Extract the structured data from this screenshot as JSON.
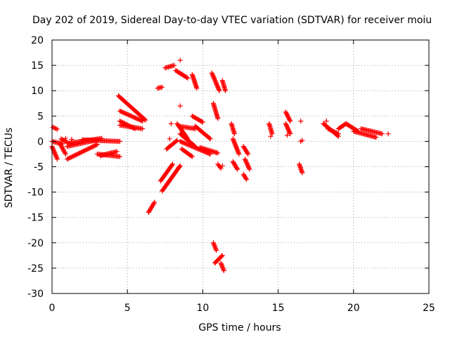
{
  "chart_data": {
    "type": "scatter",
    "title": "Day 202 of 2019, Sidereal Day-to-day VTEC variation (SDTVAR) for receiver moiu",
    "xlabel": "GPS time / hours",
    "ylabel": "SDTVAR / TECUs",
    "xlim": [
      0,
      25
    ],
    "ylim": [
      -30,
      20
    ],
    "x_ticks": [
      0,
      5,
      10,
      15,
      20,
      25
    ],
    "y_ticks": [
      -30,
      -25,
      -20,
      -15,
      -10,
      -5,
      0,
      5,
      10,
      15,
      20
    ],
    "x_tick_labels": [
      "0",
      "5",
      "10",
      "15",
      "20",
      "25"
    ],
    "y_tick_labels": [
      "-30",
      "-25",
      "-20",
      "-15",
      "-10",
      "-5",
      "0",
      "5",
      "10",
      "15",
      "20"
    ],
    "grid": true,
    "marker": "+",
    "color": "#ff0000",
    "segments": [
      {
        "x": [
          0.05,
          0.35
        ],
        "y": [
          2.8,
          2.4
        ]
      },
      {
        "x": [
          0.0,
          0.35
        ],
        "y": [
          -1.0,
          -3.5
        ]
      },
      {
        "x": [
          0.0,
          0.7
        ],
        "y": [
          0.0,
          -0.5
        ]
      },
      {
        "x": [
          0.5,
          0.9
        ],
        "y": [
          -0.3,
          -2.5
        ]
      },
      {
        "x": [
          0.6,
          1.2
        ],
        "y": [
          0.5,
          -0.5
        ]
      },
      {
        "x": [
          1.0,
          3.0
        ],
        "y": [
          -3.5,
          -0.6
        ]
      },
      {
        "x": [
          1.0,
          3.0
        ],
        "y": [
          -1.0,
          0.3
        ]
      },
      {
        "x": [
          1.2,
          3.3
        ],
        "y": [
          -0.3,
          0.6
        ]
      },
      {
        "x": [
          2.0,
          4.5
        ],
        "y": [
          0.3,
          0.0
        ]
      },
      {
        "x": [
          3.0,
          4.5
        ],
        "y": [
          -2.5,
          -3.0
        ]
      },
      {
        "x": [
          3.2,
          4.3
        ],
        "y": [
          -2.8,
          -2.0
        ]
      },
      {
        "x": [
          4.4,
          6.2
        ],
        "y": [
          9.0,
          4.2
        ]
      },
      {
        "x": [
          4.5,
          6.0
        ],
        "y": [
          6.0,
          4.0
        ]
      },
      {
        "x": [
          4.5,
          5.5
        ],
        "y": [
          4.0,
          2.5
        ]
      },
      {
        "x": [
          4.5,
          6.0
        ],
        "y": [
          3.2,
          2.5
        ]
      },
      {
        "x": [
          6.4,
          6.8
        ],
        "y": [
          -14.0,
          -12.0
        ]
      },
      {
        "x": [
          7.0,
          7.3
        ],
        "y": [
          10.5,
          10.7
        ]
      },
      {
        "x": [
          7.2,
          8.0
        ],
        "y": [
          -7.8,
          -4.5
        ]
      },
      {
        "x": [
          7.3,
          8.5
        ],
        "y": [
          -9.8,
          -4.8
        ]
      },
      {
        "x": [
          7.5,
          8.1
        ],
        "y": [
          14.5,
          15.0
        ]
      },
      {
        "x": [
          7.6,
          8.3
        ],
        "y": [
          -1.5,
          0.2
        ]
      },
      {
        "x": [
          8.2,
          9.0
        ],
        "y": [
          14.0,
          12.5
        ]
      },
      {
        "x": [
          8.3,
          9.0
        ],
        "y": [
          3.5,
          0.5
        ]
      },
      {
        "x": [
          8.4,
          9.5
        ],
        "y": [
          3.0,
          2.5
        ]
      },
      {
        "x": [
          8.5,
          9.5
        ],
        "y": [
          1.5,
          -1.0
        ]
      },
      {
        "x": [
          8.5,
          10.5
        ],
        "y": [
          0.0,
          -2.5
        ]
      },
      {
        "x": [
          8.6,
          9.3
        ],
        "y": [
          -1.5,
          -3.0
        ]
      },
      {
        "x": [
          9.3,
          9.6
        ],
        "y": [
          13.2,
          10.5
        ]
      },
      {
        "x": [
          9.3,
          10.0
        ],
        "y": [
          5.0,
          3.8
        ]
      },
      {
        "x": [
          9.5,
          10.5
        ],
        "y": [
          3.0,
          0.5
        ]
      },
      {
        "x": [
          9.8,
          11.0
        ],
        "y": [
          -1.2,
          -2.3
        ]
      },
      {
        "x": [
          10.6,
          11.1
        ],
        "y": [
          13.5,
          10.0
        ]
      },
      {
        "x": [
          10.7,
          11.0
        ],
        "y": [
          7.5,
          4.5
        ]
      },
      {
        "x": [
          10.7,
          10.9
        ],
        "y": [
          -20.0,
          -21.5
        ]
      },
      {
        "x": [
          10.8,
          11.3
        ],
        "y": [
          -24.0,
          -22.5
        ]
      },
      {
        "x": [
          11.0,
          11.2
        ],
        "y": [
          -4.5,
          -5.3
        ]
      },
      {
        "x": [
          11.2,
          11.4
        ],
        "y": [
          -24.0,
          -25.5
        ]
      },
      {
        "x": [
          11.3,
          11.5
        ],
        "y": [
          12.0,
          10.0
        ]
      },
      {
        "x": [
          11.9,
          12.1
        ],
        "y": [
          3.5,
          1.5
        ]
      },
      {
        "x": [
          12.0,
          12.4
        ],
        "y": [
          0.5,
          -2.5
        ]
      },
      {
        "x": [
          12.0,
          12.3
        ],
        "y": [
          -4.0,
          -5.5
        ]
      },
      {
        "x": [
          12.7,
          12.9
        ],
        "y": [
          -6.5,
          -7.5
        ]
      },
      {
        "x": [
          12.7,
          13.0
        ],
        "y": [
          -1.0,
          -2.5
        ]
      },
      {
        "x": [
          12.8,
          13.1
        ],
        "y": [
          -3.5,
          -5.5
        ]
      },
      {
        "x": [
          14.4,
          14.6
        ],
        "y": [
          3.5,
          1.5
        ]
      },
      {
        "x": [
          15.5,
          15.8
        ],
        "y": [
          5.8,
          4.0
        ]
      },
      {
        "x": [
          15.5,
          15.8
        ],
        "y": [
          3.5,
          1.5
        ]
      },
      {
        "x": [
          16.4,
          16.6
        ],
        "y": [
          -4.5,
          -6.2
        ]
      },
      {
        "x": [
          18.0,
          19.0
        ],
        "y": [
          3.5,
          1.0
        ]
      },
      {
        "x": [
          18.3,
          19.0
        ],
        "y": [
          2.5,
          1.5
        ]
      },
      {
        "x": [
          19.0,
          19.5
        ],
        "y": [
          2.5,
          3.5
        ]
      },
      {
        "x": [
          19.5,
          20.3
        ],
        "y": [
          3.5,
          2.0
        ]
      },
      {
        "x": [
          20.0,
          21.5
        ],
        "y": [
          2.0,
          0.8
        ]
      },
      {
        "x": [
          20.5,
          21.9
        ],
        "y": [
          2.5,
          1.5
        ]
      }
    ],
    "points": [
      {
        "x": 8.5,
        "y": 16.0
      },
      {
        "x": 8.5,
        "y": 7.0
      },
      {
        "x": 7.9,
        "y": 3.5
      },
      {
        "x": 7.8,
        "y": 0.5
      },
      {
        "x": 11.3,
        "y": -4.8
      },
      {
        "x": 16.5,
        "y": 4.0
      },
      {
        "x": 16.5,
        "y": 0.0
      },
      {
        "x": 16.6,
        "y": 0.2
      },
      {
        "x": 14.5,
        "y": 1.0
      },
      {
        "x": 15.6,
        "y": 1.2
      },
      {
        "x": 22.3,
        "y": 1.5
      },
      {
        "x": 18.2,
        "y": 4.0
      },
      {
        "x": 0.9,
        "y": 0.6
      },
      {
        "x": 1.3,
        "y": 0.4
      }
    ]
  }
}
